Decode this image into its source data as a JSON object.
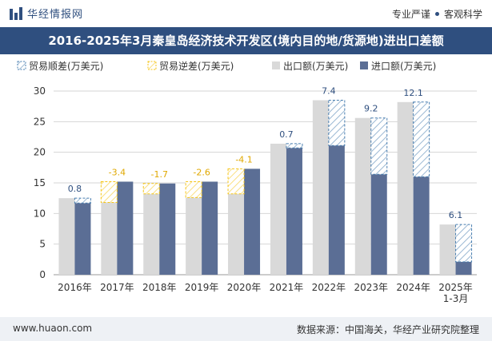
{
  "header": {
    "brand": "华经情报网",
    "tag1": "专业严谨",
    "tag2": "客观科学"
  },
  "title": "2016-2025年3月秦皇岛经济技术开发区(境内目的地/货源地)进出口差额",
  "footer": {
    "site": "www.huaon.com",
    "source": "数据来源：中国海关，华经产业研究院整理"
  },
  "colors": {
    "export": "#d9d9d9",
    "import": "#5b6e95",
    "surplus": "#4a7fb0",
    "deficit": "#f5c518",
    "surplus_label": "#2f4f7f",
    "deficit_label": "#e0a800",
    "brand": "#2f4f7f"
  },
  "chart_data": {
    "type": "bar",
    "categories": [
      "2016年",
      "2017年",
      "2018年",
      "2019年",
      "2020年",
      "2021年",
      "2022年",
      "2023年",
      "2024年",
      "2025年\n1-3月"
    ],
    "series": [
      {
        "name": "出口额(万美元)",
        "values": [
          12.5,
          11.8,
          13.2,
          12.6,
          13.2,
          21.4,
          28.5,
          25.6,
          28.2,
          8.2
        ]
      },
      {
        "name": "进口额(万美元)",
        "values": [
          11.7,
          15.2,
          14.9,
          15.2,
          17.3,
          20.7,
          21.1,
          16.4,
          16.0,
          2.1
        ]
      }
    ],
    "legend": [
      "贸易顺差(万美元)",
      "贸易逆差(万美元)",
      "出口额(万美元)",
      "进口额(万美元)"
    ],
    "balance": [
      0.8,
      -3.4,
      -1.7,
      -2.6,
      -4.1,
      0.7,
      7.4,
      9.2,
      12.1,
      6.1
    ],
    "balance_labels": [
      "0.8",
      "-3.4",
      "-1.7",
      "-2.6",
      "-4.1",
      "0.7",
      "7.4",
      "9.2",
      "12.1",
      "6.1"
    ],
    "ylim": [
      0,
      30
    ],
    "yticks": [
      0,
      5,
      10,
      15,
      20,
      25,
      30
    ],
    "grid": true,
    "legend_position": "top-left"
  }
}
